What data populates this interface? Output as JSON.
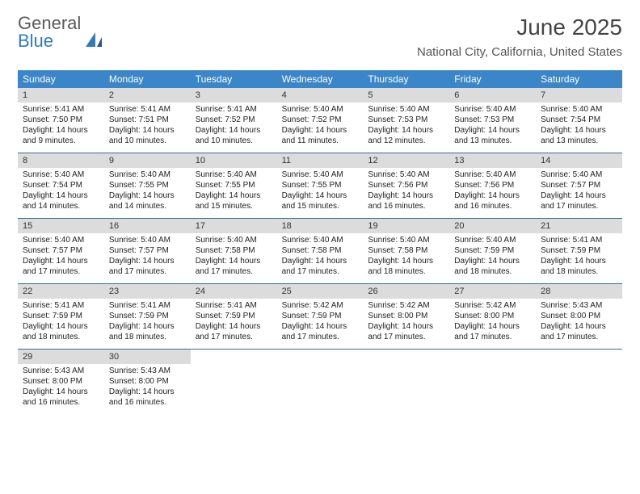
{
  "logo": {
    "gray": "General",
    "blue": "Blue"
  },
  "title": "June 2025",
  "location": "National City, California, United States",
  "colors": {
    "header_bg": "#3a86c8",
    "header_text": "#ffffff",
    "daynum_bg": "#dcdcdc",
    "week_divider": "#3a6a95",
    "body_text": "#222222",
    "title_text": "#444444",
    "logo_gray": "#5a5a5a",
    "logo_blue": "#2e7cc0"
  },
  "days_of_week": [
    "Sunday",
    "Monday",
    "Tuesday",
    "Wednesday",
    "Thursday",
    "Friday",
    "Saturday"
  ],
  "weeks": [
    [
      {
        "n": "1",
        "sr": "5:41 AM",
        "ss": "7:50 PM",
        "dl1": "Daylight: 14 hours",
        "dl2": "and 9 minutes."
      },
      {
        "n": "2",
        "sr": "5:41 AM",
        "ss": "7:51 PM",
        "dl1": "Daylight: 14 hours",
        "dl2": "and 10 minutes."
      },
      {
        "n": "3",
        "sr": "5:41 AM",
        "ss": "7:52 PM",
        "dl1": "Daylight: 14 hours",
        "dl2": "and 10 minutes."
      },
      {
        "n": "4",
        "sr": "5:40 AM",
        "ss": "7:52 PM",
        "dl1": "Daylight: 14 hours",
        "dl2": "and 11 minutes."
      },
      {
        "n": "5",
        "sr": "5:40 AM",
        "ss": "7:53 PM",
        "dl1": "Daylight: 14 hours",
        "dl2": "and 12 minutes."
      },
      {
        "n": "6",
        "sr": "5:40 AM",
        "ss": "7:53 PM",
        "dl1": "Daylight: 14 hours",
        "dl2": "and 13 minutes."
      },
      {
        "n": "7",
        "sr": "5:40 AM",
        "ss": "7:54 PM",
        "dl1": "Daylight: 14 hours",
        "dl2": "and 13 minutes."
      }
    ],
    [
      {
        "n": "8",
        "sr": "5:40 AM",
        "ss": "7:54 PM",
        "dl1": "Daylight: 14 hours",
        "dl2": "and 14 minutes."
      },
      {
        "n": "9",
        "sr": "5:40 AM",
        "ss": "7:55 PM",
        "dl1": "Daylight: 14 hours",
        "dl2": "and 14 minutes."
      },
      {
        "n": "10",
        "sr": "5:40 AM",
        "ss": "7:55 PM",
        "dl1": "Daylight: 14 hours",
        "dl2": "and 15 minutes."
      },
      {
        "n": "11",
        "sr": "5:40 AM",
        "ss": "7:55 PM",
        "dl1": "Daylight: 14 hours",
        "dl2": "and 15 minutes."
      },
      {
        "n": "12",
        "sr": "5:40 AM",
        "ss": "7:56 PM",
        "dl1": "Daylight: 14 hours",
        "dl2": "and 16 minutes."
      },
      {
        "n": "13",
        "sr": "5:40 AM",
        "ss": "7:56 PM",
        "dl1": "Daylight: 14 hours",
        "dl2": "and 16 minutes."
      },
      {
        "n": "14",
        "sr": "5:40 AM",
        "ss": "7:57 PM",
        "dl1": "Daylight: 14 hours",
        "dl2": "and 17 minutes."
      }
    ],
    [
      {
        "n": "15",
        "sr": "5:40 AM",
        "ss": "7:57 PM",
        "dl1": "Daylight: 14 hours",
        "dl2": "and 17 minutes."
      },
      {
        "n": "16",
        "sr": "5:40 AM",
        "ss": "7:57 PM",
        "dl1": "Daylight: 14 hours",
        "dl2": "and 17 minutes."
      },
      {
        "n": "17",
        "sr": "5:40 AM",
        "ss": "7:58 PM",
        "dl1": "Daylight: 14 hours",
        "dl2": "and 17 minutes."
      },
      {
        "n": "18",
        "sr": "5:40 AM",
        "ss": "7:58 PM",
        "dl1": "Daylight: 14 hours",
        "dl2": "and 17 minutes."
      },
      {
        "n": "19",
        "sr": "5:40 AM",
        "ss": "7:58 PM",
        "dl1": "Daylight: 14 hours",
        "dl2": "and 18 minutes."
      },
      {
        "n": "20",
        "sr": "5:40 AM",
        "ss": "7:59 PM",
        "dl1": "Daylight: 14 hours",
        "dl2": "and 18 minutes."
      },
      {
        "n": "21",
        "sr": "5:41 AM",
        "ss": "7:59 PM",
        "dl1": "Daylight: 14 hours",
        "dl2": "and 18 minutes."
      }
    ],
    [
      {
        "n": "22",
        "sr": "5:41 AM",
        "ss": "7:59 PM",
        "dl1": "Daylight: 14 hours",
        "dl2": "and 18 minutes."
      },
      {
        "n": "23",
        "sr": "5:41 AM",
        "ss": "7:59 PM",
        "dl1": "Daylight: 14 hours",
        "dl2": "and 18 minutes."
      },
      {
        "n": "24",
        "sr": "5:41 AM",
        "ss": "7:59 PM",
        "dl1": "Daylight: 14 hours",
        "dl2": "and 17 minutes."
      },
      {
        "n": "25",
        "sr": "5:42 AM",
        "ss": "7:59 PM",
        "dl1": "Daylight: 14 hours",
        "dl2": "and 17 minutes."
      },
      {
        "n": "26",
        "sr": "5:42 AM",
        "ss": "8:00 PM",
        "dl1": "Daylight: 14 hours",
        "dl2": "and 17 minutes."
      },
      {
        "n": "27",
        "sr": "5:42 AM",
        "ss": "8:00 PM",
        "dl1": "Daylight: 14 hours",
        "dl2": "and 17 minutes."
      },
      {
        "n": "28",
        "sr": "5:43 AM",
        "ss": "8:00 PM",
        "dl1": "Daylight: 14 hours",
        "dl2": "and 17 minutes."
      }
    ],
    [
      {
        "n": "29",
        "sr": "5:43 AM",
        "ss": "8:00 PM",
        "dl1": "Daylight: 14 hours",
        "dl2": "and 16 minutes."
      },
      {
        "n": "30",
        "sr": "5:43 AM",
        "ss": "8:00 PM",
        "dl1": "Daylight: 14 hours",
        "dl2": "and 16 minutes."
      },
      null,
      null,
      null,
      null,
      null
    ]
  ],
  "labels": {
    "sunrise": "Sunrise:",
    "sunset": "Sunset:"
  }
}
